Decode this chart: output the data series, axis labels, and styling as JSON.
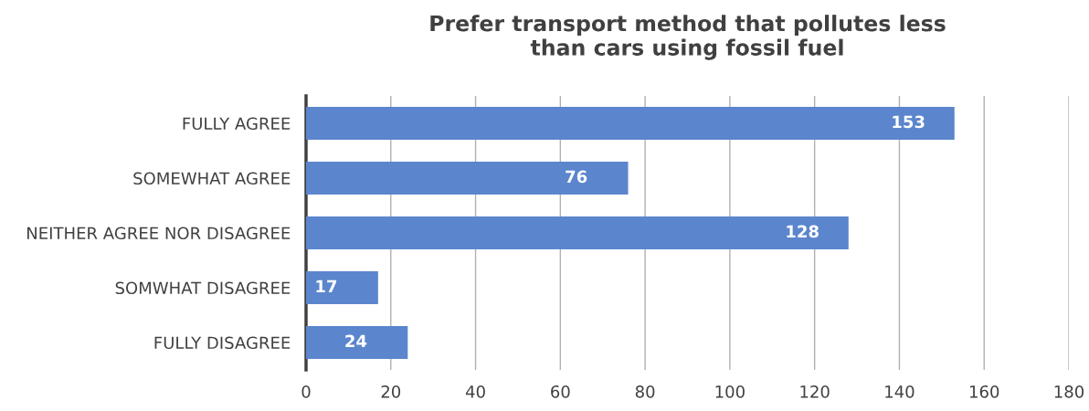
{
  "chart_data": {
    "type": "bar",
    "orientation": "horizontal",
    "title": "Prefer transport method that pollutes less\nthan cars using fossil fuel",
    "categories": [
      "FULLY AGREE",
      "SOMEWHAT AGREE",
      "NEITHER AGREE NOR DISAGREE",
      "SOMWHAT DISAGREE",
      "FULLY DISAGREE"
    ],
    "values": [
      153,
      76,
      128,
      17,
      24
    ],
    "color": "#5b86cd",
    "xlim": [
      0,
      180
    ],
    "xticks": [
      0,
      20,
      40,
      60,
      80,
      100,
      120,
      140,
      160,
      180
    ],
    "grid": "x",
    "data_labels": true,
    "legend": false
  }
}
